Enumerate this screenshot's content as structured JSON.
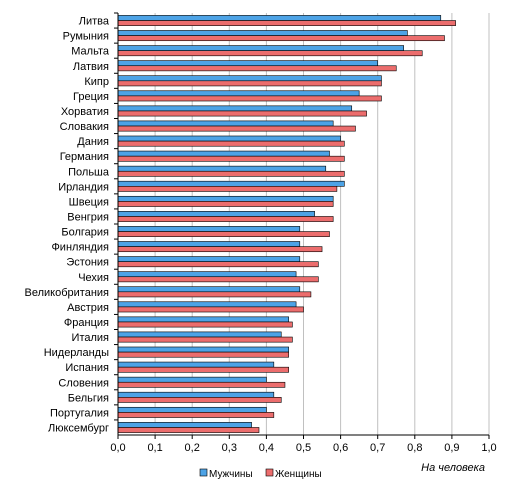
{
  "chart_data": {
    "type": "bar",
    "orientation": "horizontal",
    "categories": [
      "Литва",
      "Румыния",
      "Мальта",
      "Латвия",
      "Кипр",
      "Греция",
      "Хорватия",
      "Словакия",
      "Дания",
      "Германия",
      "Польша",
      "Ирландия",
      "Швеция",
      "Венгрия",
      "Болгария",
      "Финляндия",
      "Эстония",
      "Чехия",
      "Великобритания",
      "Австрия",
      "Франция",
      "Италия",
      "Нидерланды",
      "Испания",
      "Словения",
      "Бельгия",
      "Португалия",
      "Люксембург"
    ],
    "series": [
      {
        "name": "Мужчины",
        "color": "#4da3e6",
        "values": [
          0.87,
          0.78,
          0.77,
          0.7,
          0.71,
          0.65,
          0.63,
          0.58,
          0.6,
          0.57,
          0.56,
          0.61,
          0.58,
          0.53,
          0.49,
          0.49,
          0.49,
          0.48,
          0.49,
          0.48,
          0.46,
          0.44,
          0.46,
          0.42,
          0.4,
          0.42,
          0.4,
          0.36
        ]
      },
      {
        "name": "Женщины",
        "color": "#ec6d6d",
        "values": [
          0.91,
          0.88,
          0.82,
          0.75,
          0.71,
          0.71,
          0.67,
          0.64,
          0.61,
          0.61,
          0.61,
          0.59,
          0.58,
          0.58,
          0.57,
          0.55,
          0.54,
          0.54,
          0.52,
          0.5,
          0.47,
          0.47,
          0.46,
          0.46,
          0.45,
          0.44,
          0.42,
          0.38
        ]
      }
    ],
    "xlim": [
      0,
      1.0
    ],
    "xticks": [
      "0,0",
      "0,1",
      "0,2",
      "0,3",
      "0,4",
      "0,5",
      "0,6",
      "0,7",
      "0,8",
      "0,9",
      "1,0"
    ],
    "xlabel": "На человека",
    "grid": "vertical",
    "legend_position": "bottom"
  }
}
